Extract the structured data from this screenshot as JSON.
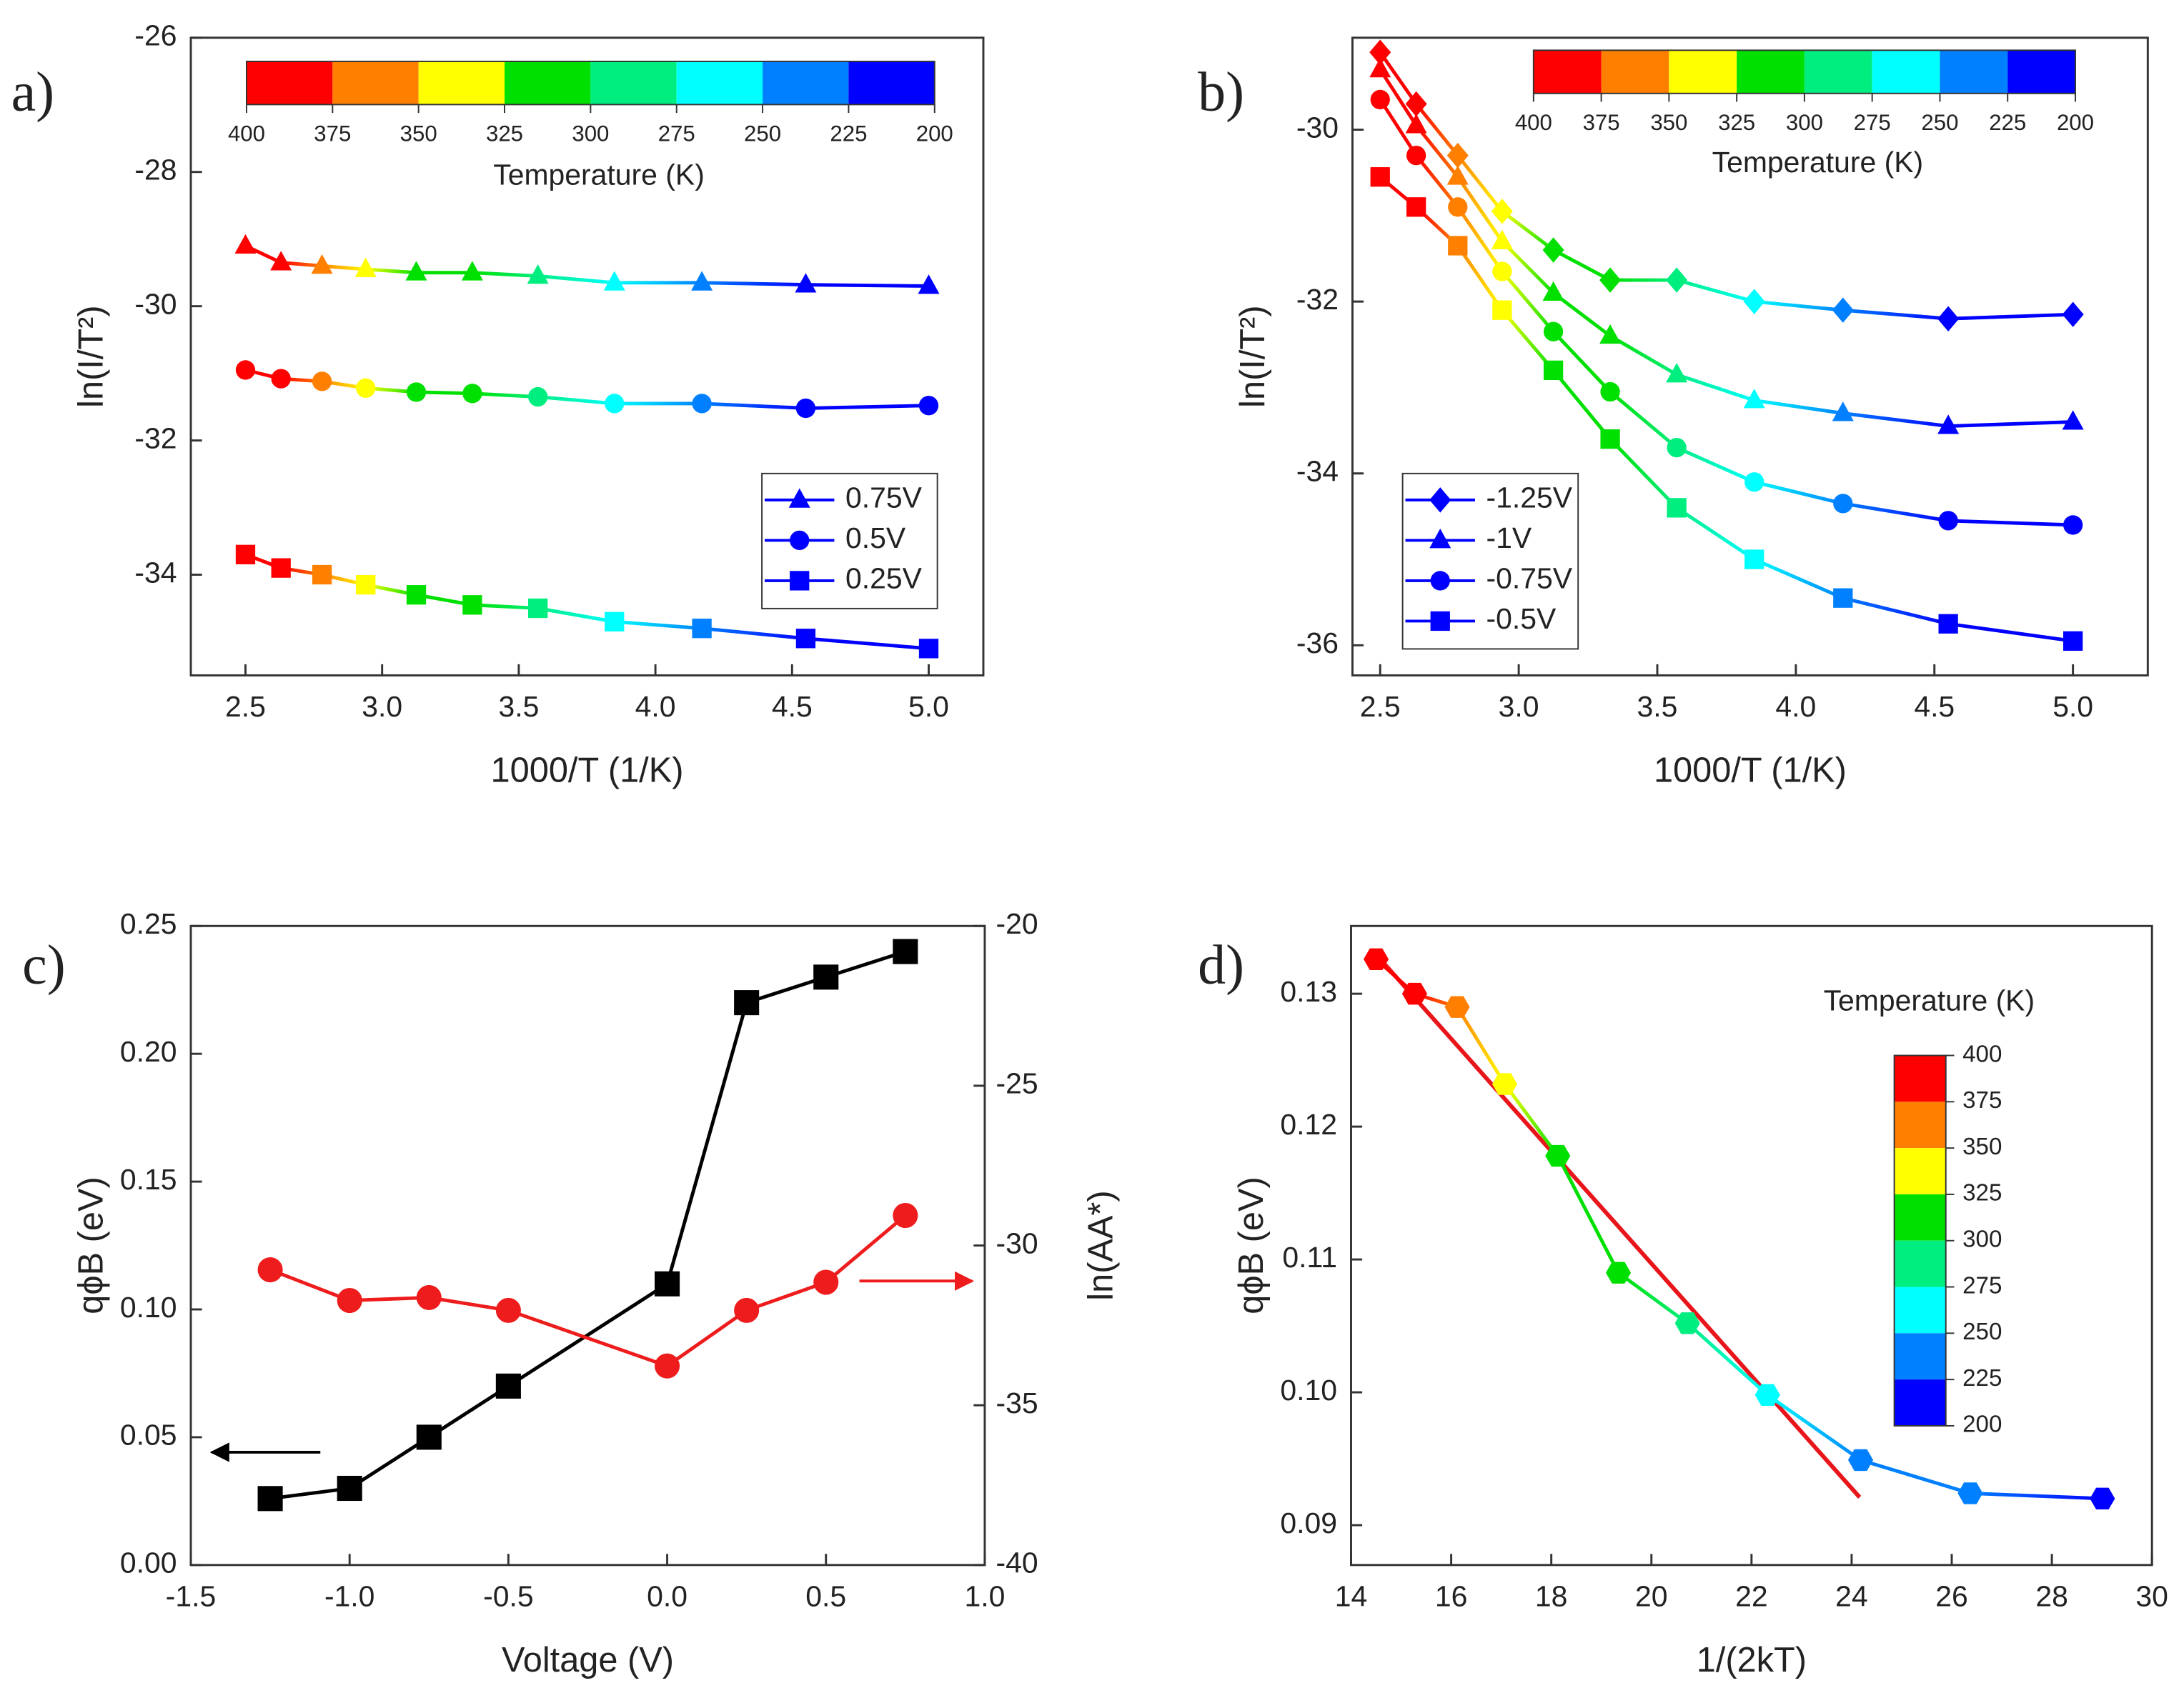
{
  "chart_data": [
    {
      "type": "line",
      "label": "a)",
      "xlabel": "1000/T (1/K)",
      "ylabel": "ln(I/T²)",
      "xlim": [
        2.3,
        5.2
      ],
      "ylim": [
        -35.5,
        -26
      ],
      "xticks": [
        2.5,
        {
          "value": 3,
          "label": "3.0"
        },
        3.5,
        {
          "value": 4,
          "label": "4.0"
        },
        4.5,
        {
          "value": 5,
          "label": "5.0"
        }
      ],
      "yticks": [
        -34,
        -32,
        -30,
        -28,
        -26
      ],
      "x": [
        2.5,
        2.63,
        2.78,
        2.94,
        3.125,
        3.33,
        3.57,
        3.85,
        4.17,
        4.55,
        5.0
      ],
      "series": [
        {
          "name": "0.75V",
          "marker": "triangle",
          "values": [
            -29.1,
            -29.35,
            -29.4,
            -29.45,
            -29.5,
            -29.5,
            -29.55,
            -29.65,
            -29.65,
            -29.68,
            -29.7
          ]
        },
        {
          "name": "0.5V",
          "marker": "circle",
          "values": [
            -30.95,
            -31.08,
            -31.12,
            -31.22,
            -31.28,
            -31.3,
            -31.35,
            -31.45,
            -31.45,
            -31.52,
            -31.48
          ]
        },
        {
          "name": "0.25V",
          "marker": "square",
          "values": [
            -33.7,
            -33.9,
            -34.0,
            -34.15,
            -34.3,
            -34.45,
            -34.5,
            -34.7,
            -34.8,
            -34.95,
            -35.1
          ]
        }
      ],
      "legend": "lower right",
      "legend_color": "#0000ff",
      "colorbar": {
        "title": "Temperature (K)",
        "ticks": [
          400,
          375,
          350,
          325,
          300,
          275,
          250,
          225,
          200
        ],
        "colors": [
          "#ff0000",
          "#ff8000",
          "#ffff00",
          "#00e000",
          "#00ee80",
          "#00ffff",
          "#0080ff",
          "#0000ff"
        ]
      }
    },
    {
      "type": "line",
      "label": "b)",
      "xlabel": "1000/T (1/K)",
      "ylabel": "ln(I/T²)",
      "xlim": [
        2.4,
        5.27
      ],
      "ylim": [
        -36.35,
        -28.93
      ],
      "xticks": [
        2.5,
        {
          "value": 3,
          "label": "3.0"
        },
        3.5,
        {
          "value": 4,
          "label": "4.0"
        },
        4.5,
        {
          "value": 5,
          "label": "5.0"
        }
      ],
      "yticks": [
        -36,
        -34,
        -32,
        -30
      ],
      "x": [
        2.5,
        2.63,
        2.78,
        2.94,
        3.125,
        3.33,
        3.57,
        3.85,
        4.17,
        4.55,
        5.0
      ],
      "series": [
        {
          "name": "-1.25V",
          "marker": "diamond",
          "values": [
            -29.1,
            -29.7,
            -30.3,
            -30.95,
            -31.4,
            -31.75,
            -31.75,
            -32.0,
            -32.1,
            -32.2,
            -32.15
          ]
        },
        {
          "name": "-1V",
          "marker": "triangle",
          "values": [
            -29.3,
            -29.95,
            -30.55,
            -31.3,
            -31.9,
            -32.4,
            -32.85,
            -33.15,
            -33.3,
            -33.45,
            -33.4
          ]
        },
        {
          "name": "-0.75V",
          "marker": "circle",
          "values": [
            -29.65,
            -30.3,
            -30.9,
            -31.65,
            -32.35,
            -33.05,
            -33.7,
            -34.1,
            -34.35,
            -34.55,
            -34.6
          ]
        },
        {
          "name": "-0.5V",
          "marker": "square",
          "values": [
            -30.55,
            -30.9,
            -31.35,
            -32.1,
            -32.8,
            -33.6,
            -34.4,
            -35.0,
            -35.45,
            -35.75,
            -35.95
          ]
        }
      ],
      "legend": "lower left",
      "legend_color": "#0000ff",
      "colorbar": {
        "title": "Temperature (K)",
        "ticks": [
          400,
          375,
          350,
          325,
          300,
          275,
          250,
          225,
          200
        ],
        "colors": [
          "#ff0000",
          "#ff8000",
          "#ffff00",
          "#00e000",
          "#00ee80",
          "#00ffff",
          "#0080ff",
          "#0000ff"
        ]
      }
    },
    {
      "type": "line",
      "label": "c)",
      "xlabel": "Voltage (V)",
      "ylabel": "qϕB (eV)",
      "y2label": "ln(AA*)",
      "xlim": [
        -1.5,
        1.0
      ],
      "ylim": [
        0,
        0.25
      ],
      "y2lim": [
        -40,
        -20
      ],
      "xticks": [
        -1.5,
        {
          "value": -1,
          "label": "-1.0"
        },
        -0.5,
        {
          "value": 0,
          "label": "0.0"
        },
        0.5,
        {
          "value": 1,
          "label": "1.0"
        }
      ],
      "yticks": [
        {
          "value": 0,
          "label": "0.00"
        },
        0.05,
        {
          "value": 0.1,
          "label": "0.10"
        },
        0.15,
        {
          "value": 0.2,
          "label": "0.20"
        },
        0.25
      ],
      "y2ticks": [
        -40,
        -35,
        -30,
        -25,
        -20
      ],
      "x": [
        -1.25,
        -1.0,
        -0.75,
        -0.5,
        0.0,
        0.25,
        0.5,
        0.75
      ],
      "series": [
        {
          "marker": "square",
          "color": "#000000",
          "values": [
            0.026,
            0.03,
            0.05,
            0.07,
            0.11,
            0.22,
            0.23,
            0.24
          ]
        },
        {
          "marker": "circle",
          "color": "#ee1c1c",
          "axis": "y2",
          "values": [
            -30.76,
            -31.72,
            -31.63,
            -32.03,
            -33.77,
            -32.03,
            -31.15,
            -29.06
          ]
        }
      ]
    },
    {
      "type": "line",
      "label": "d)",
      "xlabel": "1/(2kT)",
      "ylabel": "qϕB (eV)",
      "xlim": [
        14,
        30
      ],
      "ylim": [
        0.087,
        0.1351
      ],
      "xticks": [
        14,
        16,
        18,
        20,
        22,
        24,
        26,
        28,
        30
      ],
      "yticks": [
        0.09,
        {
          "value": 0.1,
          "label": "0.10"
        },
        0.11,
        0.12,
        0.13
      ],
      "x": [
        14.5,
        15.27,
        16.12,
        17.07,
        18.13,
        19.34,
        20.72,
        22.32,
        24.18,
        26.37,
        29.01
      ],
      "series": [
        {
          "marker": "hexagon",
          "values": [
            0.1326,
            0.13,
            0.129,
            0.1232,
            0.1178,
            0.109,
            0.1052,
            0.0998,
            0.0949,
            0.0924,
            0.092
          ],
          "marker_colors": [
            "#ff0000",
            "#ff0000",
            "#ff8000",
            "#ffff00",
            "#00e000",
            "#00e000",
            "#00ee80",
            "#00ffff",
            "#0080ff",
            "#0080ff",
            "#0000ff"
          ]
        }
      ],
      "fit": {
        "color": "#e8151b",
        "x": [
          14.56,
          24.16
        ],
        "values": [
          0.1327,
          0.0921
        ]
      },
      "colorbar": {
        "title": "Temperature (K)",
        "ticks": [
          400,
          375,
          350,
          325,
          300,
          275,
          250,
          225,
          200
        ],
        "colors": [
          "#ff0000",
          "#ff8000",
          "#ffff00",
          "#00e000",
          "#00ee80",
          "#00ffff",
          "#0080ff",
          "#0000ff"
        ]
      }
    }
  ]
}
